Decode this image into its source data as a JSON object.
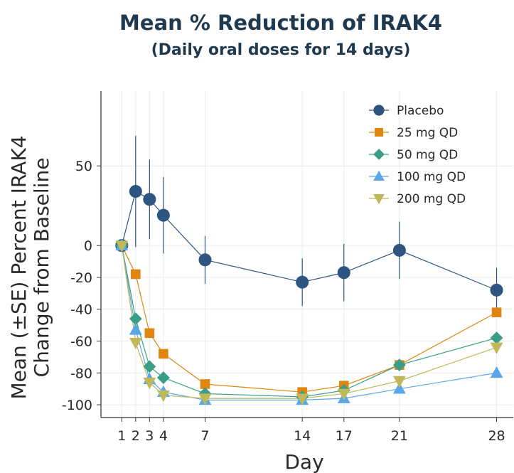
{
  "chart_data": {
    "type": "line",
    "title": "Mean % Reduction of IRAK4",
    "subtitle": "(Daily oral doses for 14 days)",
    "xlabel": "Day",
    "ylabel_line1": "Mean (±SE) Percent IRAK4",
    "ylabel_line2": "Change from Baseline",
    "xlim": [
      -0.5,
      29.2
    ],
    "ylim": [
      -108,
      97
    ],
    "x_ticks": [
      1,
      2,
      3,
      4,
      7,
      14,
      17,
      21,
      28
    ],
    "y_ticks": [
      50,
      0,
      -20,
      -40,
      -60,
      -80,
      -100
    ],
    "grid": true,
    "legend_position": "top-right",
    "series": [
      {
        "name": "Placebo",
        "marker": "circle",
        "color": "#2d5580",
        "x": [
          1,
          2,
          3,
          4,
          7,
          14,
          17,
          21,
          28
        ],
        "values": [
          0,
          34,
          29,
          19,
          -9,
          -23,
          -17,
          -3,
          -28
        ],
        "error": [
          0,
          35,
          25,
          24,
          15,
          15,
          18,
          18,
          14
        ]
      },
      {
        "name": "25 mg QD",
        "marker": "square",
        "color": "#e0860e",
        "x": [
          1,
          2,
          3,
          4,
          7,
          14,
          17,
          21,
          28
        ],
        "values": [
          0,
          -18,
          -55,
          -68,
          -87,
          -92,
          -88,
          -75,
          -42
        ]
      },
      {
        "name": "50 mg QD",
        "marker": "diamond",
        "color": "#3a9e87",
        "x": [
          1,
          2,
          3,
          4,
          7,
          14,
          17,
          21,
          28
        ],
        "values": [
          0,
          -46,
          -76,
          -83,
          -93,
          -95,
          -91,
          -75,
          -58
        ]
      },
      {
        "name": "100 mg QD",
        "marker": "triangle-up",
        "color": "#5aa7e8",
        "x": [
          1,
          2,
          3,
          4,
          7,
          14,
          17,
          21,
          28
        ],
        "values": [
          0,
          -53,
          -84,
          -92,
          -97,
          -97,
          -96,
          -90,
          -80
        ]
      },
      {
        "name": "200 mg QD",
        "marker": "triangle-down",
        "color": "#c0b95a",
        "x": [
          1,
          2,
          3,
          4,
          7,
          14,
          17,
          21,
          28
        ],
        "values": [
          0,
          -61,
          -86,
          -94,
          -96,
          -96,
          -93,
          -85,
          -64
        ]
      }
    ]
  }
}
